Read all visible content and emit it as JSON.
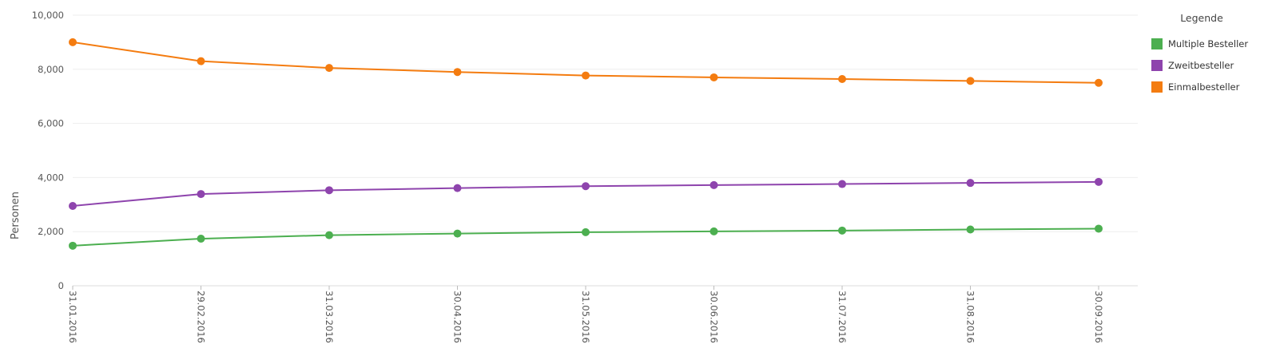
{
  "chart_data": {
    "type": "line",
    "title": "",
    "xlabel": "",
    "ylabel": "Personen",
    "categories": [
      "31.01.2016",
      "29.02.2016",
      "31.03.2016",
      "30.04.2016",
      "31.05.2016",
      "30.06.2016",
      "31.07.2016",
      "31.08.2016",
      "30.09.2016"
    ],
    "y_ticks": [
      "0",
      "2,000",
      "4,000",
      "6,000",
      "8,000",
      "10,000"
    ],
    "ylim": [
      0,
      10000
    ],
    "grid": true,
    "legend": {
      "title": "Legende",
      "position": "right"
    },
    "series": [
      {
        "name": "Multiple Besteller",
        "color": "#4caf50",
        "values": [
          1480,
          1740,
          1870,
          1930,
          1980,
          2010,
          2040,
          2080,
          2110
        ]
      },
      {
        "name": "Zweitbesteller",
        "color": "#8e44ad",
        "values": [
          2950,
          3390,
          3530,
          3610,
          3680,
          3720,
          3760,
          3800,
          3840
        ]
      },
      {
        "name": "Einmalbesteller",
        "color": "#f47c10",
        "values": [
          9000,
          8300,
          8050,
          7900,
          7770,
          7700,
          7640,
          7570,
          7500
        ]
      }
    ]
  }
}
